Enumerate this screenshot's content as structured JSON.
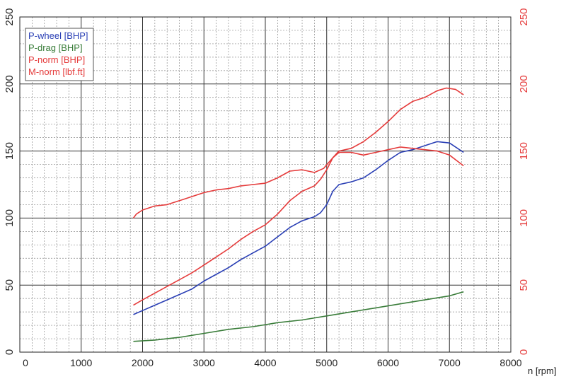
{
  "chart_data": {
    "type": "line",
    "xlabel": "n [rpm]",
    "x_ticks": [
      "0",
      "1000",
      "2000",
      "3000",
      "4000",
      "5000",
      "6000",
      "7000",
      "8000"
    ],
    "xlim": [
      0,
      8000
    ],
    "ylim": [
      0,
      250
    ],
    "y_ticks_left": [
      "0",
      "50",
      "100",
      "150",
      "200",
      "250"
    ],
    "y_ticks_right": [
      "0",
      "50",
      "100",
      "150",
      "200",
      "250"
    ],
    "grid": true,
    "legend_position": "top-left",
    "series": [
      {
        "name": "P-wheel [BHP]",
        "color": "#2a3fb5",
        "points": [
          [
            1850,
            28
          ],
          [
            2000,
            31
          ],
          [
            2200,
            35
          ],
          [
            2400,
            39
          ],
          [
            2600,
            43
          ],
          [
            2800,
            47
          ],
          [
            3000,
            53
          ],
          [
            3200,
            58
          ],
          [
            3400,
            63
          ],
          [
            3600,
            69
          ],
          [
            3800,
            74
          ],
          [
            4000,
            79
          ],
          [
            4200,
            86
          ],
          [
            4400,
            93
          ],
          [
            4600,
            98
          ],
          [
            4800,
            101
          ],
          [
            4900,
            104
          ],
          [
            5000,
            110
          ],
          [
            5100,
            120
          ],
          [
            5200,
            125
          ],
          [
            5400,
            127
          ],
          [
            5600,
            130
          ],
          [
            5800,
            136
          ],
          [
            6000,
            143
          ],
          [
            6200,
            149
          ],
          [
            6400,
            151
          ],
          [
            6600,
            154
          ],
          [
            6800,
            157
          ],
          [
            7000,
            156
          ],
          [
            7100,
            153
          ],
          [
            7230,
            149
          ]
        ]
      },
      {
        "name": "P-drag [BHP]",
        "color": "#3a7d3a",
        "points": [
          [
            1850,
            8
          ],
          [
            2200,
            9
          ],
          [
            2600,
            11
          ],
          [
            3000,
            14
          ],
          [
            3400,
            17
          ],
          [
            3800,
            19
          ],
          [
            4200,
            22
          ],
          [
            4600,
            24
          ],
          [
            5000,
            27
          ],
          [
            5400,
            30
          ],
          [
            5800,
            33
          ],
          [
            6200,
            36
          ],
          [
            6600,
            39
          ],
          [
            7000,
            42
          ],
          [
            7230,
            45
          ]
        ]
      },
      {
        "name": "P-norm [BHP]",
        "color": "#e53b3b",
        "points": [
          [
            1850,
            35
          ],
          [
            2000,
            39
          ],
          [
            2200,
            44
          ],
          [
            2400,
            49
          ],
          [
            2600,
            54
          ],
          [
            2800,
            59
          ],
          [
            3000,
            65
          ],
          [
            3200,
            71
          ],
          [
            3400,
            77
          ],
          [
            3600,
            84
          ],
          [
            3800,
            90
          ],
          [
            4000,
            95
          ],
          [
            4200,
            103
          ],
          [
            4400,
            113
          ],
          [
            4600,
            120
          ],
          [
            4800,
            124
          ],
          [
            4900,
            129
          ],
          [
            5000,
            136
          ],
          [
            5100,
            145
          ],
          [
            5200,
            150
          ],
          [
            5400,
            152
          ],
          [
            5600,
            157
          ],
          [
            5800,
            164
          ],
          [
            6000,
            172
          ],
          [
            6200,
            181
          ],
          [
            6400,
            187
          ],
          [
            6600,
            190
          ],
          [
            6800,
            195
          ],
          [
            6950,
            197
          ],
          [
            7100,
            196
          ],
          [
            7230,
            192
          ]
        ]
      },
      {
        "name": "M-norm [lbf.ft]",
        "color": "#e53b3b",
        "points": [
          [
            1850,
            100
          ],
          [
            1900,
            103
          ],
          [
            2000,
            106
          ],
          [
            2200,
            109
          ],
          [
            2400,
            110
          ],
          [
            2600,
            113
          ],
          [
            2800,
            116
          ],
          [
            3000,
            119
          ],
          [
            3200,
            121
          ],
          [
            3400,
            122
          ],
          [
            3600,
            124
          ],
          [
            3800,
            125
          ],
          [
            4000,
            126
          ],
          [
            4200,
            130
          ],
          [
            4400,
            135
          ],
          [
            4600,
            136
          ],
          [
            4800,
            134
          ],
          [
            4950,
            137
          ],
          [
            5100,
            145
          ],
          [
            5200,
            149
          ],
          [
            5400,
            149
          ],
          [
            5600,
            147
          ],
          [
            5800,
            149
          ],
          [
            6000,
            151
          ],
          [
            6200,
            153
          ],
          [
            6400,
            152
          ],
          [
            6600,
            151
          ],
          [
            6800,
            150
          ],
          [
            7000,
            147
          ],
          [
            7230,
            139
          ]
        ]
      }
    ]
  }
}
